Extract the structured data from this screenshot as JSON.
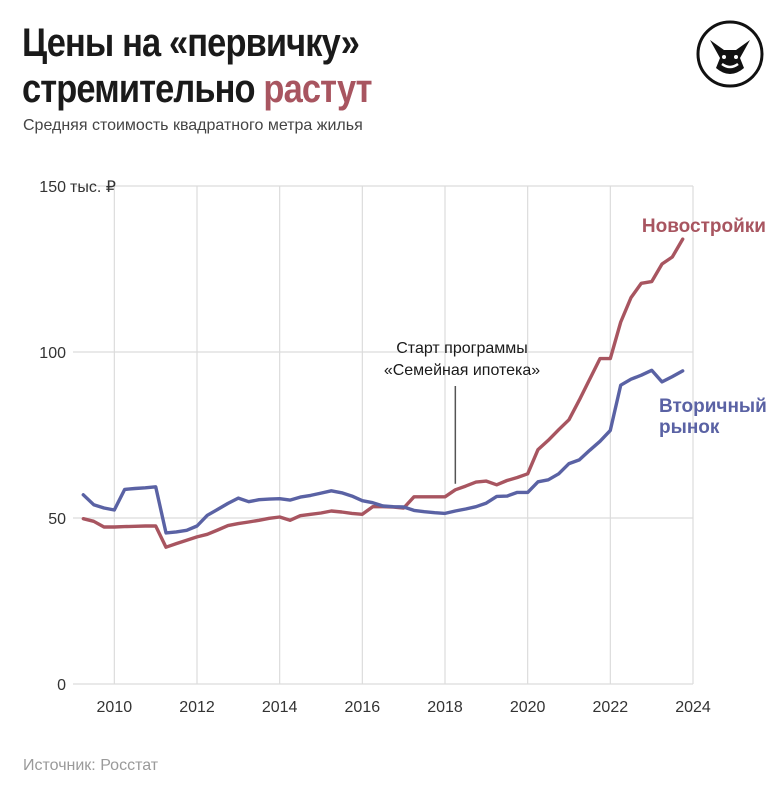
{
  "header": {
    "title_line1": "Цены на «первичку»",
    "title_line2_plain": "стремительно ",
    "title_line2_accent": "растут",
    "subtitle": "Средняя стоимость квадратного метра жилья"
  },
  "logo": {
    "icon": "fox-icon"
  },
  "source": "Источник: Росстат",
  "colors": {
    "primary": "#a85560",
    "secondary": "#5a62a4",
    "grid": "#dcdcdc",
    "accent": "#a85560"
  },
  "chart_data": {
    "type": "line",
    "title": "Цены на «первичку» стремительно растут",
    "subtitle": "Средняя стоимость квадратного метра жилья",
    "ylabel": "тыс. ₽",
    "ylim": [
      0,
      150
    ],
    "xlim": [
      2009,
      2024
    ],
    "y_ticks": [
      0,
      50,
      100,
      150
    ],
    "y_tick_labels": [
      "0",
      "50",
      "100",
      "150"
    ],
    "y_unit_label": "тыс. ₽",
    "x_ticks": [
      2010,
      2012,
      2014,
      2016,
      2018,
      2020,
      2022,
      2024
    ],
    "grid": true,
    "series": [
      {
        "name": "Новостройки",
        "label": "Новостройки",
        "x": [
          2009.25,
          2009.5,
          2009.75,
          2010.0,
          2010.25,
          2010.5,
          2010.75,
          2011.0,
          2011.25,
          2011.5,
          2011.75,
          2012.0,
          2012.25,
          2012.5,
          2012.75,
          2013.0,
          2013.25,
          2013.5,
          2013.75,
          2014.0,
          2014.25,
          2014.5,
          2014.75,
          2015.0,
          2015.25,
          2015.5,
          2015.75,
          2016.0,
          2016.25,
          2016.5,
          2016.75,
          2017.0,
          2017.25,
          2017.5,
          2017.75,
          2018.0,
          2018.25,
          2018.5,
          2018.75,
          2019.0,
          2019.25,
          2019.5,
          2019.75,
          2020.0,
          2020.25,
          2020.5,
          2020.75,
          2021.0,
          2021.25,
          2021.5,
          2021.75,
          2022.0,
          2022.25,
          2022.5,
          2022.75,
          2023.0,
          2023.25,
          2023.5,
          2023.75
        ],
        "values": [
          49.8,
          49.0,
          47.3,
          47.3,
          47.4,
          47.5,
          47.6,
          47.6,
          41.2,
          42.3,
          43.3,
          44.3,
          45.1,
          46.4,
          47.7,
          48.3,
          48.8,
          49.3,
          49.9,
          50.3,
          49.3,
          50.7,
          51.1,
          51.5,
          52.1,
          51.8,
          51.4,
          51.1,
          53.4,
          53.4,
          53.3,
          53.0,
          56.4,
          56.4,
          56.4,
          56.4,
          58.5,
          59.6,
          60.8,
          61.1,
          60.0,
          61.3,
          62.2,
          63.3,
          70.6,
          73.4,
          76.6,
          79.6,
          85.5,
          91.8,
          98.0,
          98.0,
          109.0,
          116.4,
          120.7,
          121.2,
          126.5,
          128.6,
          134.0
        ]
      },
      {
        "name": "Вторичный рынок",
        "label_line1": "Вторичный",
        "label_line2": "рынок",
        "x": [
          2009.25,
          2009.5,
          2009.75,
          2010.0,
          2010.25,
          2010.5,
          2010.75,
          2011.0,
          2011.25,
          2011.5,
          2011.75,
          2012.0,
          2012.25,
          2012.5,
          2012.75,
          2013.0,
          2013.25,
          2013.5,
          2013.75,
          2014.0,
          2014.25,
          2014.5,
          2014.75,
          2015.0,
          2015.25,
          2015.5,
          2015.75,
          2016.0,
          2016.25,
          2016.5,
          2016.75,
          2017.0,
          2017.25,
          2017.5,
          2017.75,
          2018.0,
          2018.25,
          2018.5,
          2018.75,
          2019.0,
          2019.25,
          2019.5,
          2019.75,
          2020.0,
          2020.25,
          2020.5,
          2020.75,
          2021.0,
          2021.25,
          2021.5,
          2021.75,
          2022.0,
          2022.25,
          2022.5,
          2022.75,
          2023.0,
          2023.25,
          2023.5,
          2023.75
        ],
        "values": [
          57.0,
          54.0,
          53.0,
          52.4,
          58.6,
          58.9,
          59.1,
          59.4,
          45.5,
          45.8,
          46.3,
          47.6,
          50.8,
          52.6,
          54.4,
          56.0,
          54.9,
          55.5,
          55.7,
          55.8,
          55.4,
          56.3,
          56.8,
          57.5,
          58.2,
          57.6,
          56.6,
          55.2,
          54.6,
          53.6,
          53.4,
          53.3,
          52.3,
          51.9,
          51.6,
          51.4,
          52.1,
          52.7,
          53.4,
          54.5,
          56.5,
          56.6,
          57.7,
          57.7,
          60.9,
          61.5,
          63.3,
          66.4,
          67.5,
          70.4,
          73.1,
          76.4,
          90.0,
          91.8,
          93.0,
          94.5,
          91.0,
          92.6,
          94.3
        ]
      }
    ],
    "annotations": [
      {
        "text_line1": "Старт программы",
        "text_line2": "«Семейная ипотека»",
        "x": 2018.25,
        "y": 58.5
      }
    ]
  }
}
